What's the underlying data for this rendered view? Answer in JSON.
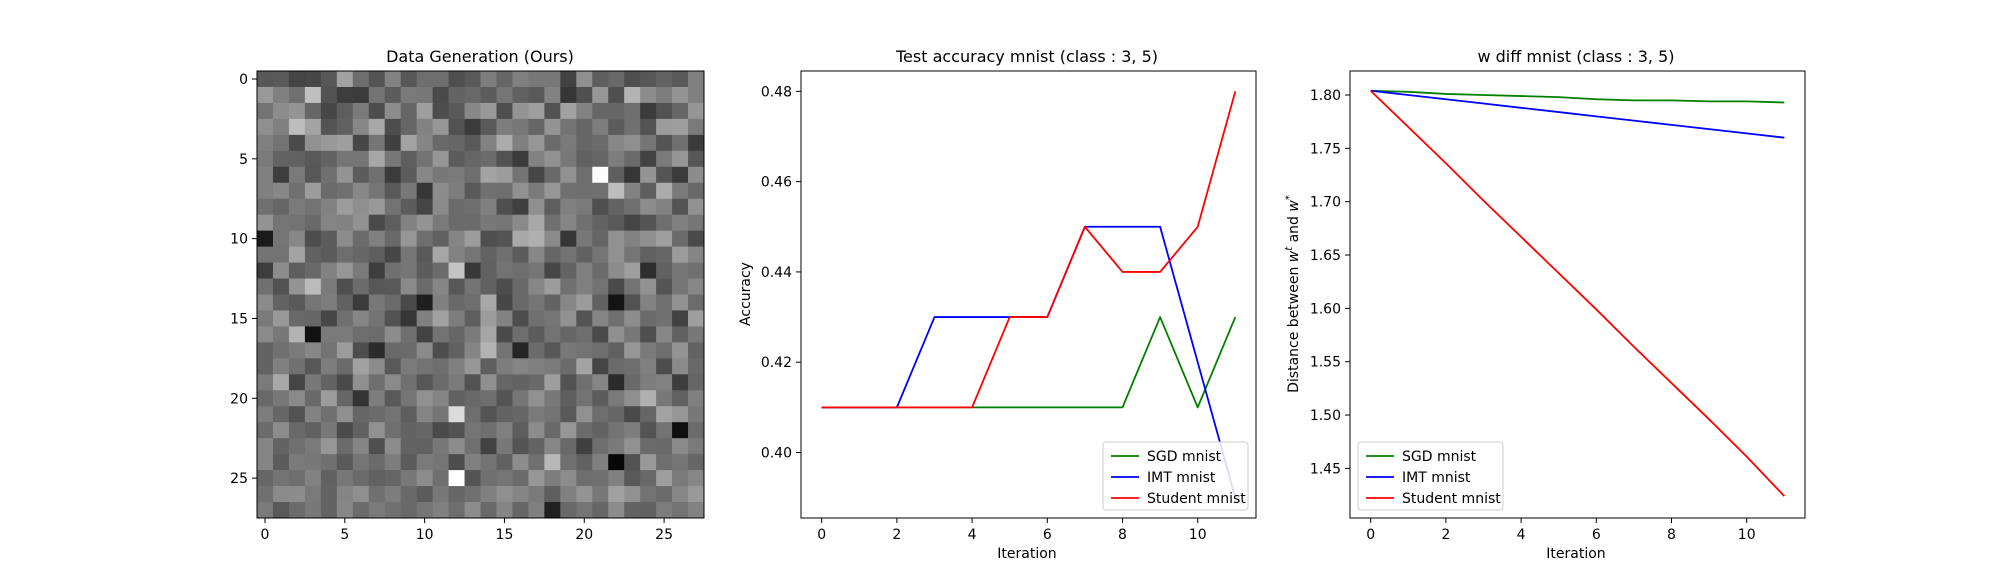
{
  "figure": {
    "background": "#ffffff"
  },
  "chart_data": [
    {
      "type": "heatmap",
      "title": "Data Generation (Ours)",
      "colormap": "gray",
      "x_ticks": [
        0,
        5,
        10,
        15,
        20,
        25
      ],
      "y_ticks": [
        0,
        5,
        10,
        15,
        20,
        25
      ],
      "grid_size": 28,
      "values": [
        [
          0.34,
          0.35,
          0.27,
          0.28,
          0.34,
          0.63,
          0.43,
          0.33,
          0.51,
          0.34,
          0.43,
          0.43,
          0.31,
          0.35,
          0.49,
          0.4,
          0.5,
          0.47,
          0.47,
          0.26,
          0.56,
          0.37,
          0.41,
          0.31,
          0.34,
          0.39,
          0.35,
          0.5
        ],
        [
          0.6,
          0.5,
          0.44,
          0.75,
          0.32,
          0.24,
          0.23,
          0.45,
          0.36,
          0.48,
          0.47,
          0.29,
          0.39,
          0.41,
          0.36,
          0.46,
          0.38,
          0.35,
          0.51,
          0.21,
          0.31,
          0.59,
          0.31,
          0.7,
          0.55,
          0.49,
          0.58,
          0.5
        ],
        [
          0.45,
          0.55,
          0.58,
          0.4,
          0.28,
          0.37,
          0.48,
          0.3,
          0.55,
          0.4,
          0.62,
          0.3,
          0.35,
          0.53,
          0.6,
          0.31,
          0.58,
          0.62,
          0.32,
          0.63,
          0.51,
          0.4,
          0.4,
          0.43,
          0.23,
          0.32,
          0.4,
          0.59
        ],
        [
          0.56,
          0.5,
          0.74,
          0.64,
          0.33,
          0.38,
          0.53,
          0.66,
          0.3,
          0.4,
          0.51,
          0.59,
          0.32,
          0.23,
          0.35,
          0.49,
          0.47,
          0.4,
          0.58,
          0.45,
          0.4,
          0.49,
          0.36,
          0.44,
          0.33,
          0.61,
          0.62,
          0.48
        ],
        [
          0.5,
          0.45,
          0.29,
          0.57,
          0.6,
          0.62,
          0.28,
          0.46,
          0.25,
          0.64,
          0.52,
          0.41,
          0.4,
          0.35,
          0.51,
          0.67,
          0.5,
          0.59,
          0.42,
          0.48,
          0.4,
          0.42,
          0.53,
          0.56,
          0.46,
          0.33,
          0.44,
          0.23
        ],
        [
          0.48,
          0.39,
          0.38,
          0.35,
          0.39,
          0.46,
          0.46,
          0.65,
          0.47,
          0.37,
          0.45,
          0.59,
          0.36,
          0.4,
          0.42,
          0.32,
          0.23,
          0.51,
          0.57,
          0.47,
          0.38,
          0.4,
          0.49,
          0.42,
          0.26,
          0.48,
          0.59,
          0.34
        ],
        [
          0.5,
          0.24,
          0.48,
          0.34,
          0.44,
          0.58,
          0.36,
          0.44,
          0.23,
          0.36,
          0.53,
          0.47,
          0.48,
          0.43,
          0.64,
          0.61,
          0.45,
          0.28,
          0.41,
          0.57,
          0.43,
          0.99,
          0.37,
          0.21,
          0.58,
          0.33,
          0.23,
          0.55
        ],
        [
          0.5,
          0.53,
          0.44,
          0.61,
          0.42,
          0.44,
          0.53,
          0.46,
          0.35,
          0.47,
          0.21,
          0.55,
          0.49,
          0.35,
          0.44,
          0.43,
          0.57,
          0.48,
          0.59,
          0.44,
          0.43,
          0.44,
          0.74,
          0.51,
          0.37,
          0.67,
          0.48,
          0.41
        ],
        [
          0.44,
          0.4,
          0.48,
          0.45,
          0.51,
          0.61,
          0.56,
          0.6,
          0.45,
          0.36,
          0.27,
          0.54,
          0.42,
          0.43,
          0.5,
          0.31,
          0.25,
          0.56,
          0.37,
          0.5,
          0.48,
          0.31,
          0.39,
          0.44,
          0.55,
          0.51,
          0.33,
          0.57
        ],
        [
          0.58,
          0.46,
          0.45,
          0.41,
          0.52,
          0.51,
          0.57,
          0.29,
          0.37,
          0.51,
          0.58,
          0.48,
          0.42,
          0.42,
          0.47,
          0.46,
          0.54,
          0.66,
          0.44,
          0.52,
          0.44,
          0.39,
          0.35,
          0.27,
          0.33,
          0.43,
          0.5,
          0.46
        ],
        [
          0.1,
          0.46,
          0.53,
          0.3,
          0.36,
          0.55,
          0.42,
          0.5,
          0.41,
          0.59,
          0.43,
          0.38,
          0.52,
          0.61,
          0.31,
          0.33,
          0.66,
          0.69,
          0.54,
          0.21,
          0.47,
          0.4,
          0.57,
          0.51,
          0.56,
          0.62,
          0.42,
          0.29
        ],
        [
          0.45,
          0.45,
          0.64,
          0.38,
          0.36,
          0.43,
          0.4,
          0.37,
          0.28,
          0.46,
          0.35,
          0.65,
          0.51,
          0.46,
          0.39,
          0.44,
          0.36,
          0.53,
          0.4,
          0.45,
          0.38,
          0.46,
          0.57,
          0.46,
          0.38,
          0.4,
          0.61,
          0.52
        ],
        [
          0.24,
          0.55,
          0.37,
          0.41,
          0.51,
          0.59,
          0.48,
          0.24,
          0.44,
          0.46,
          0.36,
          0.42,
          0.77,
          0.22,
          0.38,
          0.45,
          0.43,
          0.46,
          0.28,
          0.39,
          0.5,
          0.42,
          0.55,
          0.62,
          0.18,
          0.38,
          0.46,
          0.44
        ],
        [
          0.44,
          0.32,
          0.58,
          0.73,
          0.48,
          0.31,
          0.42,
          0.34,
          0.35,
          0.54,
          0.42,
          0.52,
          0.34,
          0.45,
          0.38,
          0.3,
          0.41,
          0.53,
          0.61,
          0.44,
          0.5,
          0.45,
          0.29,
          0.45,
          0.57,
          0.33,
          0.46,
          0.53
        ],
        [
          0.54,
          0.39,
          0.35,
          0.46,
          0.49,
          0.38,
          0.23,
          0.47,
          0.42,
          0.29,
          0.12,
          0.5,
          0.41,
          0.43,
          0.66,
          0.28,
          0.41,
          0.46,
          0.39,
          0.53,
          0.61,
          0.38,
          0.08,
          0.32,
          0.51,
          0.44,
          0.57,
          0.42
        ],
        [
          0.48,
          0.6,
          0.41,
          0.4,
          0.28,
          0.44,
          0.52,
          0.45,
          0.32,
          0.21,
          0.5,
          0.63,
          0.49,
          0.37,
          0.61,
          0.51,
          0.3,
          0.44,
          0.46,
          0.57,
          0.33,
          0.52,
          0.44,
          0.55,
          0.42,
          0.44,
          0.26,
          0.62
        ],
        [
          0.54,
          0.47,
          0.7,
          0.07,
          0.48,
          0.48,
          0.43,
          0.42,
          0.55,
          0.44,
          0.26,
          0.45,
          0.4,
          0.48,
          0.65,
          0.29,
          0.43,
          0.36,
          0.45,
          0.4,
          0.43,
          0.29,
          0.56,
          0.47,
          0.31,
          0.53,
          0.38,
          0.47
        ],
        [
          0.39,
          0.44,
          0.48,
          0.53,
          0.45,
          0.61,
          0.3,
          0.17,
          0.41,
          0.42,
          0.54,
          0.3,
          0.38,
          0.52,
          0.7,
          0.45,
          0.15,
          0.42,
          0.34,
          0.47,
          0.45,
          0.43,
          0.38,
          0.59,
          0.48,
          0.43,
          0.58,
          0.39
        ],
        [
          0.39,
          0.5,
          0.44,
          0.34,
          0.49,
          0.42,
          0.63,
          0.55,
          0.35,
          0.48,
          0.45,
          0.43,
          0.5,
          0.59,
          0.37,
          0.49,
          0.52,
          0.5,
          0.48,
          0.42,
          0.64,
          0.27,
          0.42,
          0.43,
          0.5,
          0.3,
          0.54,
          0.41
        ],
        [
          0.48,
          0.66,
          0.27,
          0.47,
          0.39,
          0.29,
          0.56,
          0.43,
          0.54,
          0.44,
          0.34,
          0.42,
          0.48,
          0.32,
          0.56,
          0.4,
          0.39,
          0.41,
          0.62,
          0.32,
          0.44,
          0.52,
          0.17,
          0.41,
          0.49,
          0.51,
          0.24,
          0.4
        ],
        [
          0.41,
          0.47,
          0.54,
          0.41,
          0.61,
          0.4,
          0.2,
          0.49,
          0.35,
          0.46,
          0.57,
          0.52,
          0.38,
          0.41,
          0.43,
          0.33,
          0.46,
          0.57,
          0.47,
          0.37,
          0.45,
          0.36,
          0.48,
          0.56,
          0.69,
          0.47,
          0.38,
          0.5
        ],
        [
          0.49,
          0.4,
          0.32,
          0.51,
          0.44,
          0.56,
          0.4,
          0.42,
          0.45,
          0.37,
          0.52,
          0.46,
          0.86,
          0.43,
          0.33,
          0.39,
          0.4,
          0.48,
          0.45,
          0.35,
          0.57,
          0.43,
          0.4,
          0.29,
          0.4,
          0.64,
          0.59,
          0.47
        ],
        [
          0.42,
          0.55,
          0.41,
          0.38,
          0.47,
          0.29,
          0.38,
          0.57,
          0.44,
          0.39,
          0.4,
          0.29,
          0.32,
          0.46,
          0.43,
          0.5,
          0.37,
          0.55,
          0.41,
          0.59,
          0.42,
          0.39,
          0.45,
          0.49,
          0.33,
          0.45,
          0.06,
          0.42
        ],
        [
          0.52,
          0.39,
          0.44,
          0.48,
          0.59,
          0.42,
          0.52,
          0.31,
          0.55,
          0.39,
          0.38,
          0.47,
          0.55,
          0.44,
          0.26,
          0.47,
          0.33,
          0.39,
          0.53,
          0.41,
          0.25,
          0.43,
          0.48,
          0.57,
          0.42,
          0.41,
          0.54,
          0.48
        ],
        [
          0.52,
          0.36,
          0.48,
          0.47,
          0.44,
          0.35,
          0.46,
          0.42,
          0.49,
          0.36,
          0.48,
          0.46,
          0.3,
          0.5,
          0.45,
          0.38,
          0.55,
          0.44,
          0.72,
          0.44,
          0.38,
          0.5,
          0.03,
          0.32,
          0.6,
          0.43,
          0.46,
          0.4
        ],
        [
          0.4,
          0.45,
          0.43,
          0.51,
          0.38,
          0.47,
          0.42,
          0.38,
          0.4,
          0.47,
          0.55,
          0.44,
          1.0,
          0.33,
          0.44,
          0.46,
          0.42,
          0.59,
          0.49,
          0.55,
          0.43,
          0.44,
          0.5,
          0.35,
          0.41,
          0.62,
          0.48,
          0.53
        ],
        [
          0.44,
          0.54,
          0.55,
          0.48,
          0.39,
          0.52,
          0.56,
          0.44,
          0.49,
          0.41,
          0.36,
          0.47,
          0.4,
          0.44,
          0.5,
          0.56,
          0.52,
          0.48,
          0.37,
          0.5,
          0.58,
          0.47,
          0.63,
          0.57,
          0.45,
          0.42,
          0.53,
          0.6
        ],
        [
          0.48,
          0.35,
          0.42,
          0.47,
          0.39,
          0.53,
          0.42,
          0.48,
          0.44,
          0.41,
          0.46,
          0.5,
          0.43,
          0.55,
          0.41,
          0.52,
          0.4,
          0.5,
          0.13,
          0.41,
          0.46,
          0.4,
          0.55,
          0.39,
          0.38,
          0.49,
          0.45,
          0.51
        ]
      ]
    },
    {
      "type": "line",
      "title": "Test accuracy mnist (class : 3, 5)",
      "xlabel": "Iteration",
      "ylabel": "Accuracy",
      "xlim": [
        -0.55,
        11.55
      ],
      "ylim": [
        0.3855,
        0.4845
      ],
      "x_ticks": [
        0,
        2,
        4,
        6,
        8,
        10
      ],
      "y_ticks": [
        0.4,
        0.42,
        0.44,
        0.46,
        0.48
      ],
      "y_tick_labels": [
        "0.40",
        "0.42",
        "0.44",
        "0.46",
        "0.48"
      ],
      "legend_position": "lower-right",
      "x": [
        0,
        1,
        2,
        3,
        4,
        5,
        6,
        7,
        8,
        9,
        10,
        11
      ],
      "series": [
        {
          "name": "SGD mnist",
          "color": "#008000",
          "values": [
            0.41,
            0.41,
            0.41,
            0.41,
            0.41,
            0.41,
            0.41,
            0.41,
            0.41,
            0.43,
            0.41,
            0.43
          ]
        },
        {
          "name": "IMT mnist",
          "color": "#0000ff",
          "values": [
            0.41,
            0.41,
            0.41,
            0.43,
            0.43,
            0.43,
            0.43,
            0.45,
            0.45,
            0.45,
            0.42,
            0.39
          ]
        },
        {
          "name": "Student mnist",
          "color": "#ff0000",
          "values": [
            0.41,
            0.41,
            0.41,
            0.41,
            0.41,
            0.43,
            0.43,
            0.45,
            0.44,
            0.44,
            0.45,
            0.48
          ]
        }
      ]
    },
    {
      "type": "line",
      "title": "w diff mnist (class : 3, 5)",
      "xlabel": "Iteration",
      "ylabel": "Distance between w^t and w^*",
      "ylabel_parts": {
        "pre": "Distance between ",
        "w1": "w",
        "s1": "t",
        "mid": " and ",
        "w2": "w",
        "s2": "*"
      },
      "xlim": [
        -0.55,
        11.55
      ],
      "ylim": [
        1.4035,
        1.8225
      ],
      "x_ticks": [
        0,
        2,
        4,
        6,
        8,
        10
      ],
      "y_ticks": [
        1.45,
        1.5,
        1.55,
        1.6,
        1.65,
        1.7,
        1.75,
        1.8
      ],
      "y_tick_labels": [
        "1.45",
        "1.50",
        "1.55",
        "1.60",
        "1.65",
        "1.70",
        "1.75",
        "1.80"
      ],
      "legend_position": "lower-left",
      "x": [
        0,
        1,
        2,
        3,
        4,
        5,
        6,
        7,
        8,
        9,
        10,
        11
      ],
      "series": [
        {
          "name": "SGD mnist",
          "color": "#008000",
          "values": [
            1.804,
            1.803,
            1.801,
            1.8,
            1.799,
            1.798,
            1.796,
            1.795,
            1.795,
            1.794,
            1.794,
            1.793
          ]
        },
        {
          "name": "IMT mnist",
          "color": "#0000ff",
          "values": [
            1.804,
            1.8,
            1.796,
            1.792,
            1.788,
            1.784,
            1.78,
            1.776,
            1.772,
            1.768,
            1.764,
            1.76
          ]
        },
        {
          "name": "Student mnist",
          "color": "#ff0000",
          "values": [
            1.804,
            1.77,
            1.736,
            1.701,
            1.667,
            1.633,
            1.599,
            1.564,
            1.53,
            1.496,
            1.461,
            1.424
          ]
        }
      ]
    }
  ]
}
